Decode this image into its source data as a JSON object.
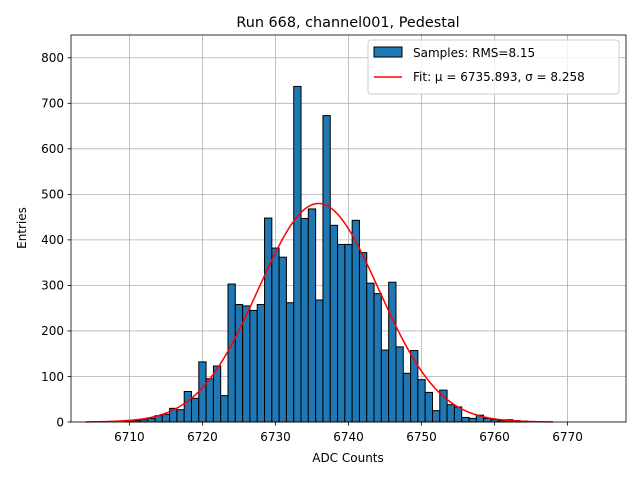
{
  "chart_data": {
    "type": "bar",
    "title": "Run 668, channel001, Pedestal",
    "xlabel": "ADC Counts",
    "ylabel": "Entries",
    "xlim": [
      6702,
      6778
    ],
    "ylim": [
      0,
      850
    ],
    "xticks": [
      6710,
      6720,
      6730,
      6740,
      6750,
      6760,
      6770
    ],
    "yticks": [
      0,
      100,
      200,
      300,
      400,
      500,
      600,
      700,
      800
    ],
    "grid": true,
    "legend_position": "top-right",
    "bin_width": 1,
    "histogram": {
      "name": "Samples: RMS=8.15",
      "color": "#1f77b4",
      "edgecolor": "#000000",
      "bins": [
        {
          "x": 6710,
          "count": 2
        },
        {
          "x": 6711,
          "count": 3
        },
        {
          "x": 6712,
          "count": 5
        },
        {
          "x": 6713,
          "count": 8
        },
        {
          "x": 6714,
          "count": 14
        },
        {
          "x": 6715,
          "count": 17
        },
        {
          "x": 6716,
          "count": 30
        },
        {
          "x": 6717,
          "count": 27
        },
        {
          "x": 6718,
          "count": 67
        },
        {
          "x": 6719,
          "count": 52
        },
        {
          "x": 6720,
          "count": 132
        },
        {
          "x": 6721,
          "count": 95
        },
        {
          "x": 6722,
          "count": 123
        },
        {
          "x": 6723,
          "count": 58
        },
        {
          "x": 6724,
          "count": 303
        },
        {
          "x": 6725,
          "count": 258
        },
        {
          "x": 6726,
          "count": 255
        },
        {
          "x": 6727,
          "count": 245
        },
        {
          "x": 6728,
          "count": 258
        },
        {
          "x": 6729,
          "count": 448
        },
        {
          "x": 6730,
          "count": 382
        },
        {
          "x": 6731,
          "count": 362
        },
        {
          "x": 6732,
          "count": 262
        },
        {
          "x": 6733,
          "count": 737
        },
        {
          "x": 6734,
          "count": 447
        },
        {
          "x": 6735,
          "count": 468
        },
        {
          "x": 6736,
          "count": 268
        },
        {
          "x": 6737,
          "count": 673
        },
        {
          "x": 6738,
          "count": 432
        },
        {
          "x": 6739,
          "count": 390
        },
        {
          "x": 6740,
          "count": 390
        },
        {
          "x": 6741,
          "count": 443
        },
        {
          "x": 6742,
          "count": 372
        },
        {
          "x": 6743,
          "count": 305
        },
        {
          "x": 6744,
          "count": 282
        },
        {
          "x": 6745,
          "count": 158
        },
        {
          "x": 6746,
          "count": 307
        },
        {
          "x": 6747,
          "count": 165
        },
        {
          "x": 6748,
          "count": 107
        },
        {
          "x": 6749,
          "count": 157
        },
        {
          "x": 6750,
          "count": 93
        },
        {
          "x": 6751,
          "count": 65
        },
        {
          "x": 6752,
          "count": 25
        },
        {
          "x": 6753,
          "count": 70
        },
        {
          "x": 6754,
          "count": 38
        },
        {
          "x": 6755,
          "count": 33
        },
        {
          "x": 6756,
          "count": 10
        },
        {
          "x": 6757,
          "count": 8
        },
        {
          "x": 6758,
          "count": 15
        },
        {
          "x": 6759,
          "count": 8
        },
        {
          "x": 6760,
          "count": 5
        },
        {
          "x": 6761,
          "count": 3
        },
        {
          "x": 6762,
          "count": 5
        },
        {
          "x": 6763,
          "count": 3
        },
        {
          "x": 6764,
          "count": 2
        }
      ]
    },
    "fit": {
      "name": "Fit: μ = 6735.893, σ = 8.258",
      "color": "#ff0000",
      "mu": 6735.893,
      "sigma": 8.258,
      "amplitude": 480,
      "x_range": [
        6704,
        6768
      ]
    }
  }
}
